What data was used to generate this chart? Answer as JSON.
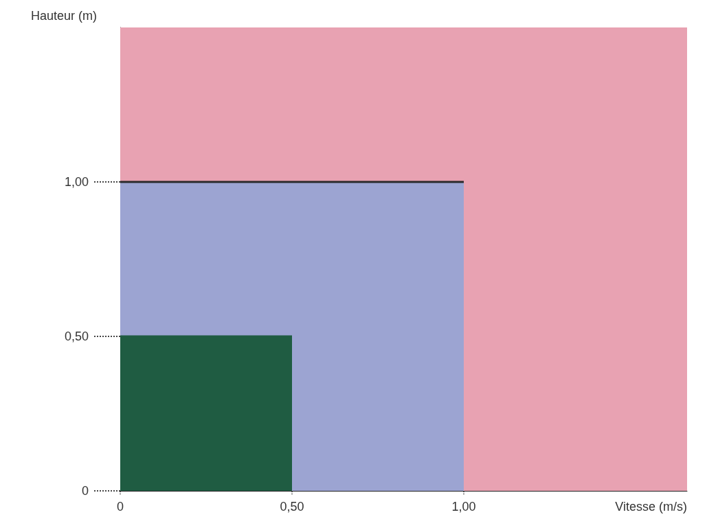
{
  "chart_data": {
    "type": "area",
    "xlabel": "Vitesse (m/s)",
    "ylabel": "Hauteur (m)",
    "xlim": [
      0,
      1.65
    ],
    "ylim": [
      0,
      1.5
    ],
    "xticks": [
      {
        "value": 0,
        "label": "0"
      },
      {
        "value": 0.5,
        "label": "0,50"
      },
      {
        "value": 1,
        "label": "1,00"
      }
    ],
    "yticks": [
      {
        "value": 0,
        "label": "0"
      },
      {
        "value": 0.5,
        "label": "0,50"
      },
      {
        "value": 1,
        "label": "1,00"
      }
    ],
    "bands": [
      {
        "axis": "y",
        "from": 0,
        "to": 1.5,
        "color": "#e8a2b2"
      }
    ],
    "series": [
      {
        "x": [
          0,
          1
        ],
        "values": [
          1,
          1
        ],
        "color": "#9ca4d2"
      },
      {
        "x": [
          0,
          0.5
        ],
        "values": [
          0.5,
          0.5
        ],
        "color": "#1f5c42"
      }
    ],
    "marker": "none",
    "line_style": "solid"
  }
}
